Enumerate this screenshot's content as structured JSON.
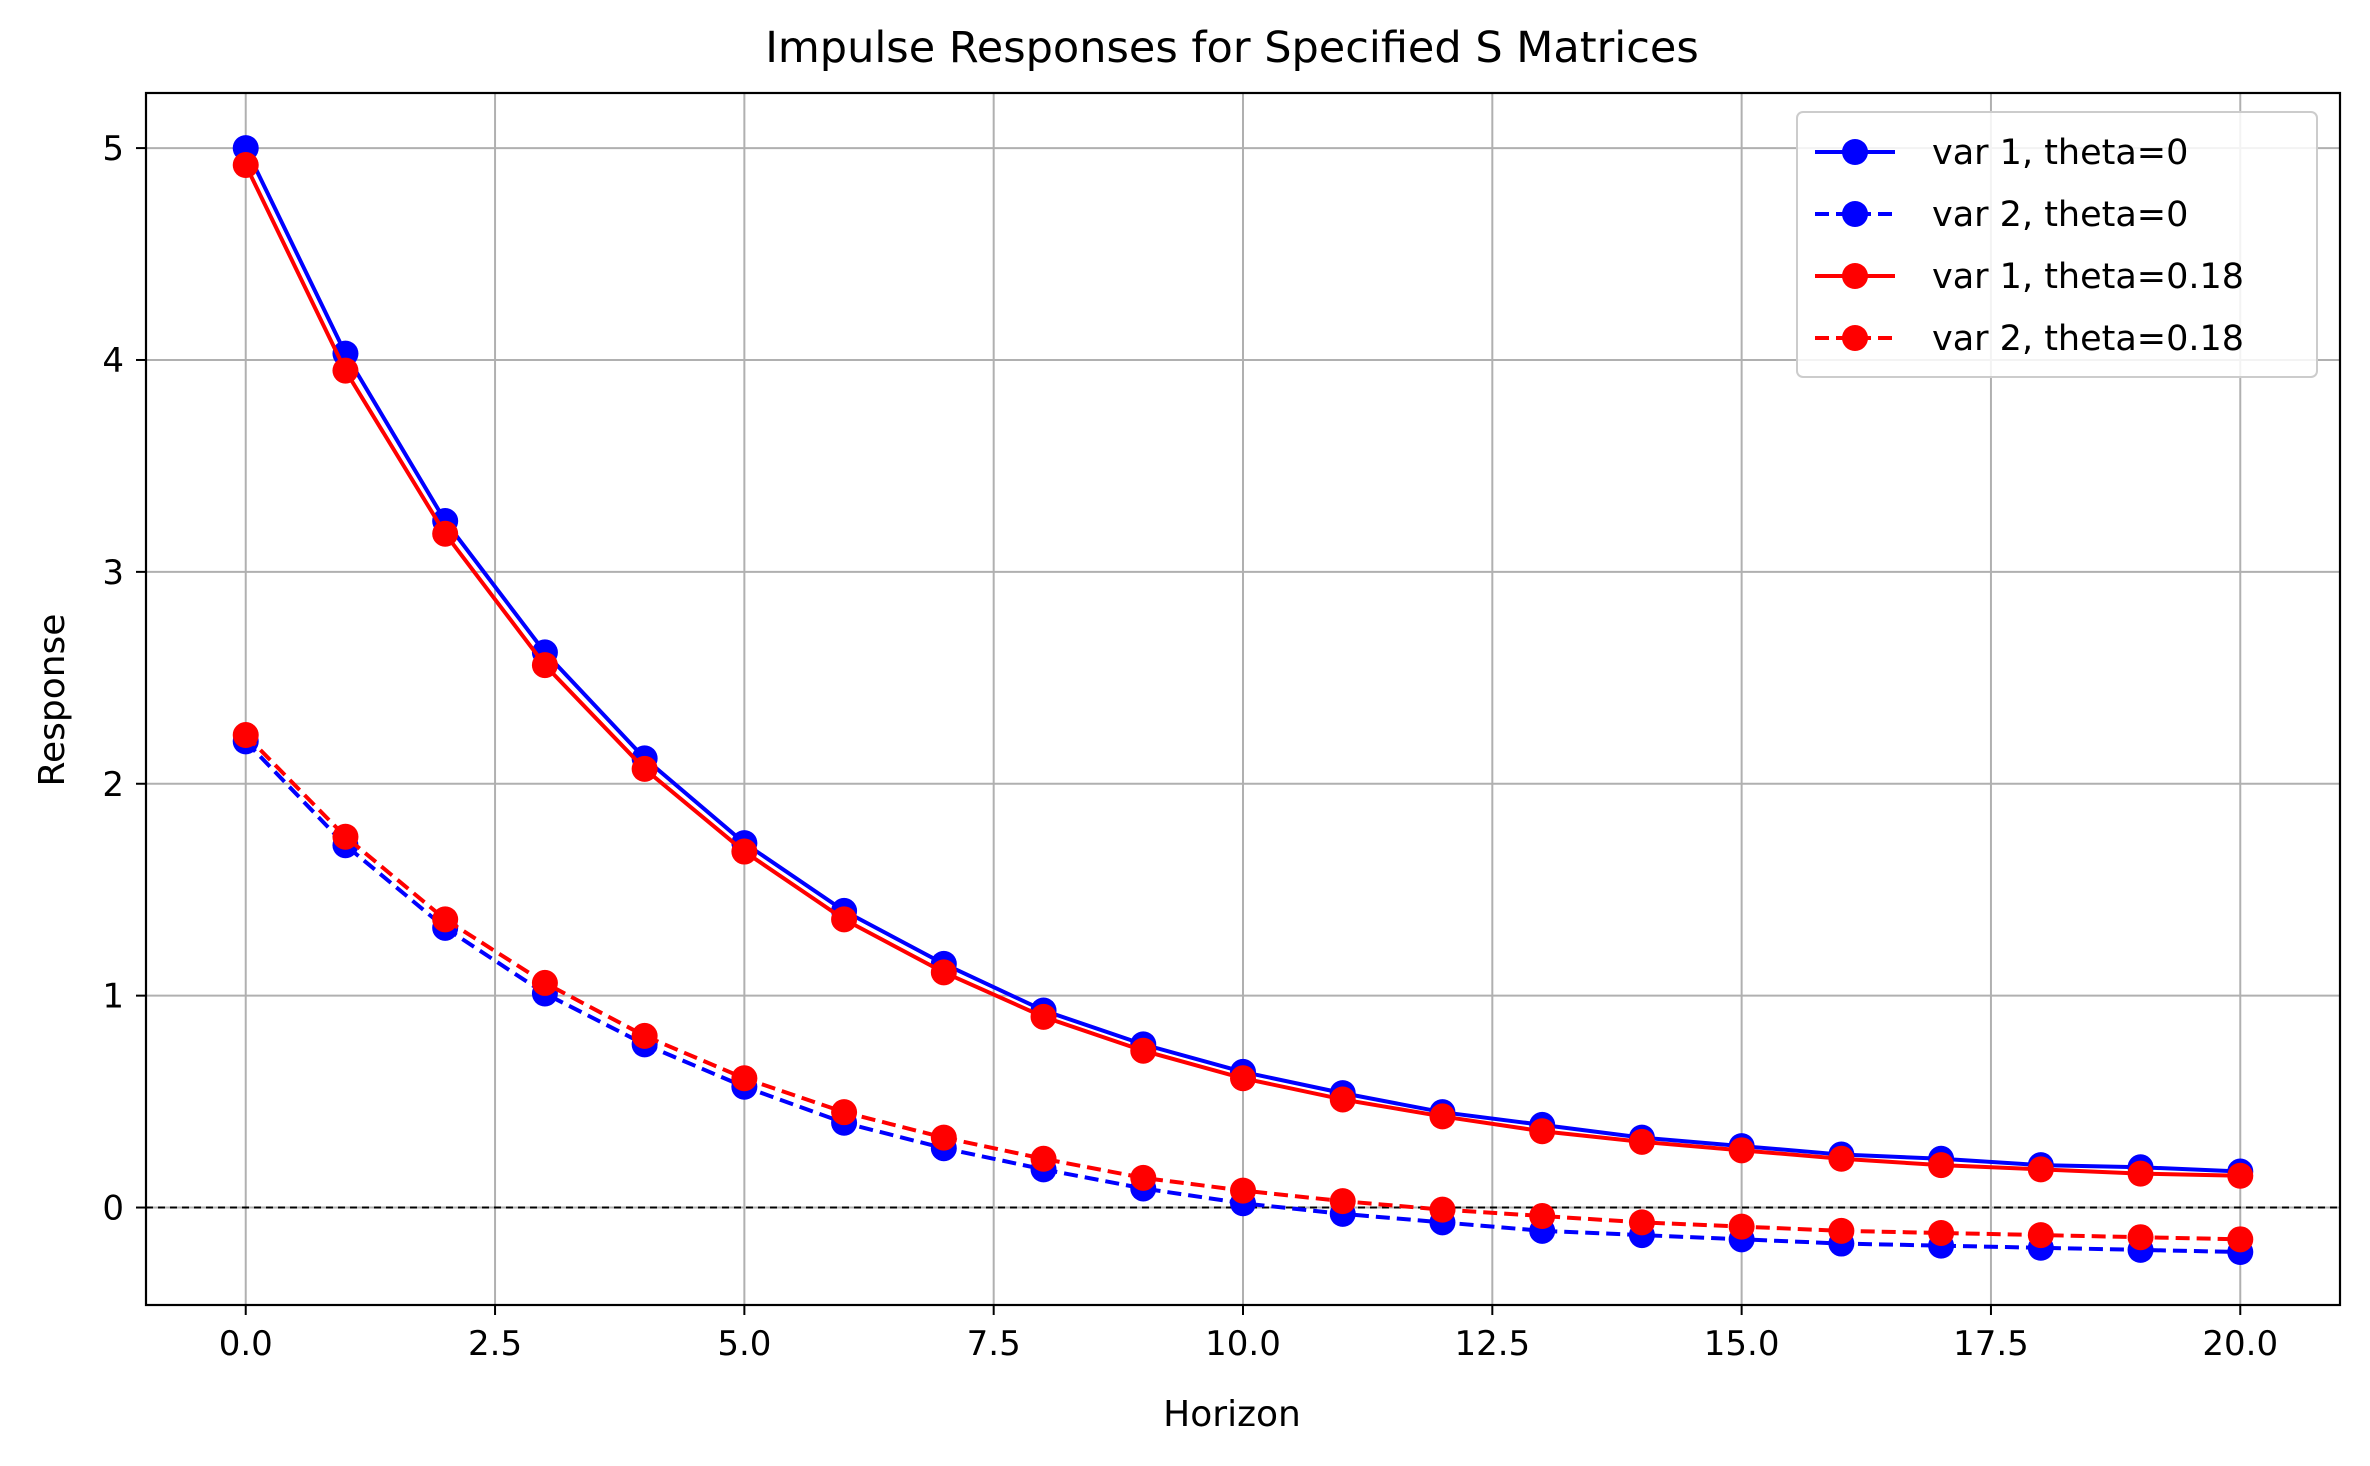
{
  "chart_data": {
    "type": "line",
    "title": "Impulse Responses for Specified S Matrices",
    "xlabel": "Horizon",
    "ylabel": "Response",
    "xlim": [
      -1,
      21
    ],
    "ylim": [
      -0.46,
      5.26
    ],
    "xticks": [
      0,
      2.5,
      5,
      7.5,
      10,
      12.5,
      15,
      17.5,
      20
    ],
    "xtick_labels": [
      "0.0",
      "2.5",
      "5.0",
      "7.5",
      "10.0",
      "12.5",
      "15.0",
      "17.5",
      "20.0"
    ],
    "yticks": [
      0,
      1,
      2,
      3,
      4,
      5
    ],
    "ytick_labels": [
      "0",
      "1",
      "2",
      "3",
      "4",
      "5"
    ],
    "grid": true,
    "legend_position": "top-right",
    "reference_line": {
      "y": 0,
      "style": "dashed",
      "color": "#000000"
    },
    "x": [
      0,
      1,
      2,
      3,
      4,
      5,
      6,
      7,
      8,
      9,
      10,
      11,
      12,
      13,
      14,
      15,
      16,
      17,
      18,
      19,
      20
    ],
    "series": [
      {
        "name": "var 1, theta=0",
        "color": "#0000ff",
        "linestyle": "solid",
        "marker": "circle",
        "values": [
          5.0,
          4.03,
          3.24,
          2.62,
          2.12,
          1.72,
          1.4,
          1.15,
          0.93,
          0.77,
          0.64,
          0.54,
          0.45,
          0.39,
          0.33,
          0.29,
          0.25,
          0.23,
          0.2,
          0.19,
          0.17
        ]
      },
      {
        "name": "var 2, theta=0",
        "color": "#0000ff",
        "linestyle": "dashed",
        "marker": "circle",
        "values": [
          2.2,
          1.71,
          1.32,
          1.01,
          0.77,
          0.57,
          0.4,
          0.28,
          0.18,
          0.09,
          0.02,
          -0.03,
          -0.07,
          -0.11,
          -0.13,
          -0.15,
          -0.17,
          -0.18,
          -0.19,
          -0.2,
          -0.21
        ]
      },
      {
        "name": "var 1, theta=0.18",
        "color": "#ff0000",
        "linestyle": "solid",
        "marker": "circle",
        "values": [
          4.92,
          3.95,
          3.18,
          2.56,
          2.07,
          1.68,
          1.36,
          1.11,
          0.9,
          0.74,
          0.61,
          0.51,
          0.43,
          0.36,
          0.31,
          0.27,
          0.23,
          0.2,
          0.18,
          0.16,
          0.15
        ]
      },
      {
        "name": "var 2, theta=0.18",
        "color": "#ff0000",
        "linestyle": "dashed",
        "marker": "circle",
        "values": [
          2.23,
          1.75,
          1.36,
          1.06,
          0.81,
          0.61,
          0.45,
          0.33,
          0.23,
          0.14,
          0.08,
          0.03,
          -0.01,
          -0.04,
          -0.07,
          -0.09,
          -0.11,
          -0.12,
          -0.13,
          -0.14,
          -0.15
        ]
      }
    ]
  }
}
